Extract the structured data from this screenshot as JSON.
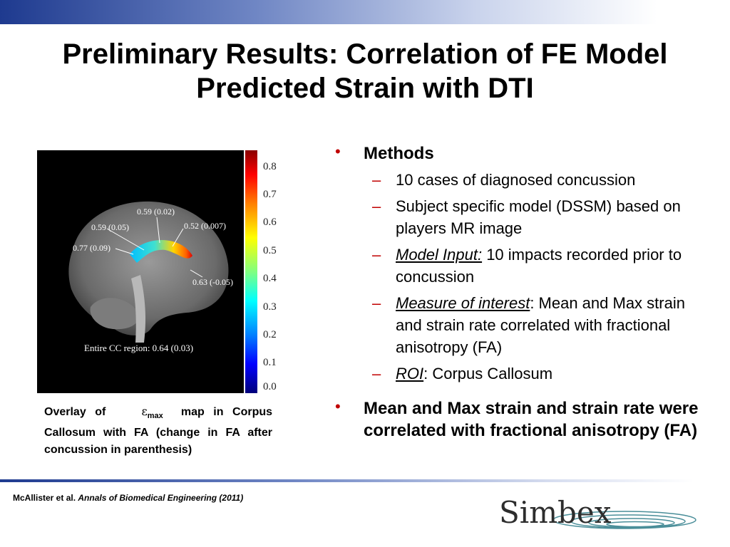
{
  "title": {
    "line1": "Preliminary Results:  Correlation of FE Model",
    "line2": "Predicted Strain with DTI"
  },
  "figure": {
    "annotations": [
      "0.59 (0.02)",
      "0.59 (0.05)",
      "0.52 (0.007)",
      "0.77 (0.09)",
      "0.63 (-0.05)"
    ],
    "region_label": "Entire CC region: 0.64 (0.03)",
    "colorbar_ticks": [
      "0.8",
      "0.7",
      "0.6",
      "0.5",
      "0.4",
      "0.3",
      "0.2",
      "0.1",
      "0.0"
    ]
  },
  "caption": {
    "prefix": "Overlay of",
    "symbol": "ε",
    "symbol_sub": "max",
    "suffix": "map in Corpus Callosum with FA (change in FA after concussion in parenthesis)"
  },
  "bullets": {
    "methods": {
      "heading": "Methods",
      "items": {
        "cases": "10 cases of diagnosed concussion",
        "dssm": "Subject specific model (DSSM) based on players MR image",
        "input_term": "Model Input:",
        "input_text": " 10 impacts recorded prior to concussion",
        "measure_term": "Measure of interest",
        "measure_text": ":  Mean and Max strain and strain rate correlated with fractional anisotropy (FA)",
        "roi_term": "ROI",
        "roi_text": ": Corpus Callosum"
      }
    },
    "result": "Mean and Max strain and strain rate were correlated with fractional anisotropy (FA)"
  },
  "citation": {
    "author": "McAllister et al.",
    "journal": "Annals of Biomedical Engineering (2011)"
  },
  "logo": {
    "text": "Simbex"
  },
  "colors": {
    "accent_bullet": "#c00000",
    "bar_blue": "#1e3a8f"
  }
}
